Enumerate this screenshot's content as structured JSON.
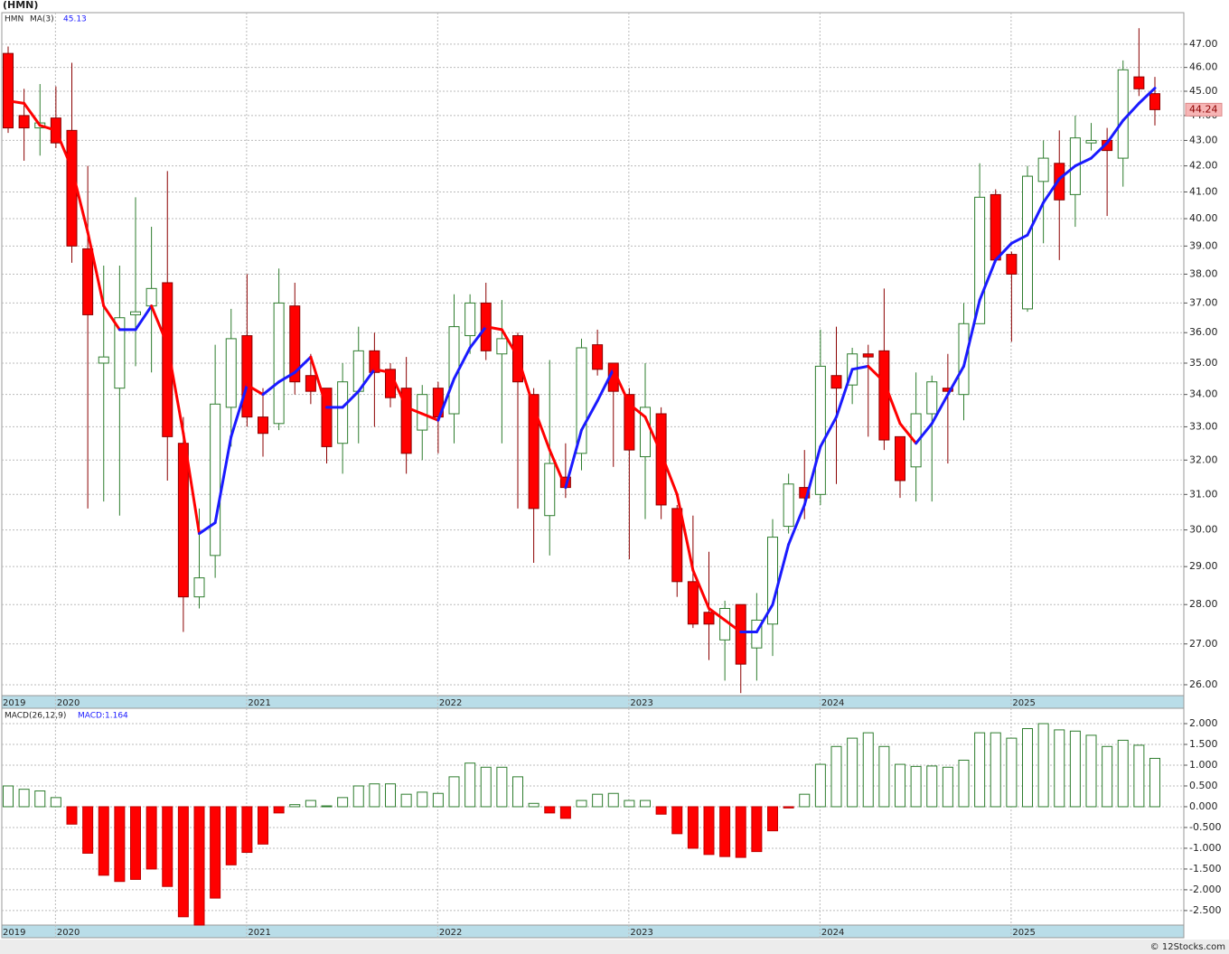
{
  "chart_data": [
    {
      "type": "candlestick",
      "title": "(HMN)",
      "ticker": "HMN",
      "log": true,
      "grid": true,
      "up_color": "#1a1aff",
      "down_color": "#ff0000",
      "rise_color": "#2e7d2e",
      "fall_color": "#ff0000",
      "categories": [
        "2019",
        null,
        null,
        "2020",
        null,
        null,
        null,
        null,
        null,
        null,
        null,
        null,
        null,
        null,
        null,
        "2021",
        null,
        null,
        null,
        null,
        null,
        null,
        null,
        null,
        null,
        null,
        null,
        "2022",
        null,
        null,
        null,
        null,
        null,
        null,
        null,
        null,
        null,
        null,
        null,
        "2023",
        null,
        null,
        null,
        null,
        null,
        null,
        null,
        null,
        null,
        null,
        null,
        "2024",
        null,
        null,
        null,
        null,
        null,
        null,
        null,
        null,
        null,
        null,
        null,
        "2025",
        null,
        null,
        null,
        null,
        null,
        null,
        null,
        null,
        null
      ],
      "open": [
        46.6,
        44.0,
        43.5,
        43.9,
        43.4,
        38.9,
        35.0,
        34.2,
        36.6,
        36.9,
        37.7,
        32.5,
        28.2,
        29.3,
        33.6,
        35.9,
        33.3,
        33.1,
        36.9,
        34.6,
        34.2,
        32.5,
        34.1,
        35.4,
        34.8,
        34.2,
        32.9,
        34.2,
        33.4,
        35.9,
        37.0,
        35.3,
        35.9,
        34.0,
        30.4,
        31.5,
        32.2,
        35.6,
        35.0,
        34.0,
        32.1,
        33.4,
        30.6,
        28.6,
        27.8,
        27.1,
        28.0,
        26.9,
        27.5,
        30.1,
        31.2,
        31.0,
        34.6,
        34.3,
        35.3,
        35.4,
        32.7,
        31.8,
        33.4,
        34.2,
        34.0,
        36.3,
        40.9,
        38.7,
        36.8,
        41.4,
        42.1,
        40.9,
        42.9,
        43.0,
        42.3,
        45.6,
        44.9
      ],
      "high": [
        46.9,
        45.1,
        45.3,
        45.2,
        46.2,
        42.0,
        38.3,
        38.3,
        40.8,
        39.7,
        41.8,
        33.3,
        30.6,
        35.6,
        36.8,
        38.0,
        34.2,
        38.2,
        37.7,
        35.3,
        34.2,
        35.0,
        36.2,
        36.0,
        35.0,
        35.2,
        34.3,
        34.4,
        37.3,
        37.3,
        37.7,
        37.1,
        36.0,
        34.2,
        35.1,
        32.5,
        35.8,
        36.1,
        35.0,
        34.2,
        35.0,
        33.6,
        30.7,
        30.4,
        29.4,
        28.1,
        28.0,
        28.3,
        30.3,
        31.6,
        32.3,
        36.1,
        36.2,
        35.5,
        35.6,
        37.5,
        32.7,
        34.7,
        34.6,
        35.3,
        37.0,
        42.1,
        41.1,
        38.8,
        42.0,
        43.0,
        43.4,
        44.0,
        43.7,
        43.5,
        46.3,
        47.7,
        45.6
      ],
      "low": [
        43.3,
        42.2,
        42.4,
        42.7,
        38.4,
        30.6,
        30.8,
        30.4,
        34.9,
        34.7,
        31.4,
        27.3,
        27.9,
        28.7,
        32.4,
        33.0,
        32.1,
        32.9,
        34.0,
        33.7,
        31.9,
        31.6,
        32.5,
        33.0,
        33.6,
        31.6,
        32.0,
        32.2,
        32.5,
        35.3,
        35.1,
        32.5,
        30.6,
        29.1,
        29.3,
        30.9,
        31.7,
        34.6,
        31.8,
        29.2,
        30.3,
        30.3,
        28.2,
        27.4,
        26.6,
        26.1,
        25.8,
        26.1,
        26.7,
        29.9,
        30.3,
        30.7,
        31.3,
        33.7,
        32.7,
        32.3,
        30.9,
        30.8,
        30.8,
        31.9,
        33.2,
        36.3,
        38.4,
        35.7,
        36.7,
        39.1,
        38.5,
        39.7,
        42.6,
        40.1,
        41.2,
        44.8,
        43.6
      ],
      "close": [
        43.5,
        43.5,
        43.7,
        42.9,
        39.0,
        36.6,
        35.2,
        36.5,
        36.7,
        37.5,
        32.7,
        28.2,
        28.7,
        33.7,
        35.8,
        33.3,
        32.8,
        37.0,
        34.4,
        34.1,
        32.4,
        34.4,
        35.4,
        34.7,
        33.9,
        32.2,
        34.0,
        33.3,
        36.2,
        37.0,
        35.4,
        35.8,
        34.4,
        30.6,
        31.9,
        31.2,
        35.5,
        34.8,
        34.1,
        32.3,
        33.6,
        30.7,
        28.6,
        27.5,
        27.5,
        27.9,
        26.5,
        27.6,
        29.8,
        31.3,
        30.9,
        34.9,
        34.2,
        35.3,
        35.2,
        32.6,
        31.4,
        33.4,
        34.4,
        34.1,
        36.3,
        40.8,
        38.5,
        38.0,
        41.6,
        42.3,
        40.7,
        43.1,
        43.0,
        42.6,
        45.9,
        45.1,
        44.24
      ],
      "ma": {
        "name": "MA(3)",
        "values": [
          44.6,
          44.5,
          43.6,
          43.4,
          41.9,
          39.5,
          36.9,
          36.1,
          36.1,
          36.9,
          35.6,
          32.8,
          29.9,
          30.2,
          32.7,
          34.3,
          34.0,
          34.4,
          34.7,
          35.2,
          33.6,
          33.6,
          34.1,
          34.8,
          34.7,
          33.6,
          33.4,
          33.2,
          34.5,
          35.5,
          36.2,
          36.1,
          35.2,
          33.6,
          32.3,
          31.2,
          32.9,
          33.8,
          34.8,
          33.7,
          33.3,
          32.2,
          31.0,
          28.9,
          27.9,
          27.6,
          27.3,
          27.3,
          28.0,
          29.6,
          30.7,
          32.4,
          33.3,
          34.8,
          34.9,
          34.4,
          33.1,
          32.5,
          33.1,
          34.0,
          34.9,
          37.1,
          38.5,
          39.1,
          39.4,
          40.6,
          41.5,
          42.0,
          42.3,
          42.9,
          43.8,
          44.5,
          45.13
        ]
      },
      "ylim": [
        25.74,
        48.39
      ],
      "yticks": [
        {
          "value": 26,
          "label": "26.00"
        },
        {
          "value": 27,
          "label": "27.00"
        },
        {
          "value": 28,
          "label": "28.00"
        },
        {
          "value": 29,
          "label": "29.00"
        },
        {
          "value": 30,
          "label": "30.00"
        },
        {
          "value": 31,
          "label": "31.00"
        },
        {
          "value": 32,
          "label": "32.00"
        },
        {
          "value": 33,
          "label": "33.00"
        },
        {
          "value": 34,
          "label": "34.00"
        },
        {
          "value": 35,
          "label": "35.00"
        },
        {
          "value": 36,
          "label": "36.00"
        },
        {
          "value": 37,
          "label": "37.00"
        },
        {
          "value": 38,
          "label": "38.00"
        },
        {
          "value": 39,
          "label": "39.00"
        },
        {
          "value": 40,
          "label": "40.00"
        },
        {
          "value": 41,
          "label": "41.00"
        },
        {
          "value": 42,
          "label": "42.00"
        },
        {
          "value": 43,
          "label": "43.00"
        },
        {
          "value": 44,
          "label": "44.00"
        },
        {
          "value": 45,
          "label": "45.00"
        },
        {
          "value": 46,
          "label": "46.00"
        },
        {
          "value": 47,
          "label": "47.00"
        }
      ]
    },
    {
      "type": "bar",
      "name": "MACD(26,12,9)",
      "value_label": "MACD:1.164",
      "grid": true,
      "positive_color": "#2e7d2e",
      "negative_color": "#ff0000",
      "values": [
        0.5,
        0.42,
        0.38,
        0.22,
        -0.42,
        -1.12,
        -1.65,
        -1.8,
        -1.75,
        -1.5,
        -1.92,
        -2.65,
        -2.85,
        -2.2,
        -1.4,
        -1.1,
        -0.9,
        -0.15,
        0.05,
        0.15,
        0.02,
        0.22,
        0.5,
        0.55,
        0.55,
        0.3,
        0.35,
        0.32,
        0.72,
        1.05,
        0.95,
        0.95,
        0.72,
        0.08,
        -0.15,
        -0.28,
        0.15,
        0.3,
        0.32,
        0.15,
        0.15,
        -0.18,
        -0.65,
        -1.0,
        -1.15,
        -1.2,
        -1.22,
        -1.08,
        -0.58,
        -0.03,
        0.3,
        1.02,
        1.45,
        1.65,
        1.78,
        1.45,
        1.02,
        0.97,
        0.98,
        0.95,
        1.12,
        1.78,
        1.78,
        1.65,
        1.88,
        2.0,
        1.85,
        1.82,
        1.72,
        1.45,
        1.6,
        1.48,
        1.164
      ],
      "ylim": [
        -2.85,
        2.37
      ],
      "yticks": [
        {
          "value": 2,
          "label": "2.000"
        },
        {
          "value": 1.5,
          "label": "1.500"
        },
        {
          "value": 1,
          "label": "1.000"
        },
        {
          "value": 0.5,
          "label": "0.500"
        },
        {
          "value": 0,
          "label": "0.000"
        },
        {
          "value": -0.5,
          "label": "-0.500"
        },
        {
          "value": -1,
          "label": "-1.000"
        },
        {
          "value": -1.5,
          "label": "-1.500"
        },
        {
          "value": -2,
          "label": "-2.000"
        },
        {
          "value": -2.5,
          "label": "-2.500"
        }
      ]
    }
  ],
  "footer": "© 12Stocks.com"
}
